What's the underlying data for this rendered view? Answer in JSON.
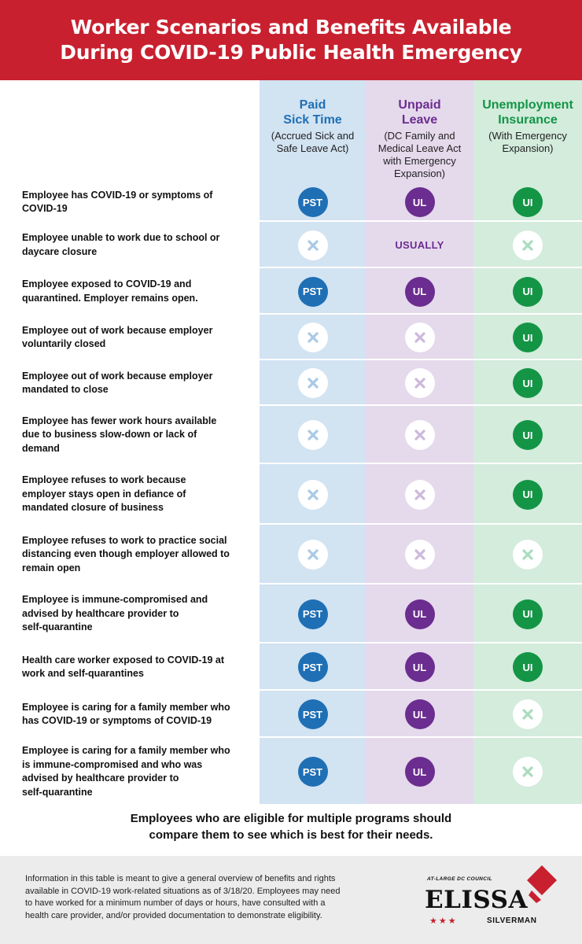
{
  "header": {
    "title_line1": "Worker Scenarios and Benefits Available",
    "title_line2": "During COVID-19 Public Health Emergency"
  },
  "columns": [
    {
      "title_line1": "Paid",
      "title_line2": "Sick Time",
      "sub_line1": "(Accrued Sick and",
      "sub_line2": "Safe Leave Act)",
      "sub_line3": "",
      "color": "#1f6fb5"
    },
    {
      "title_line1": "Unpaid",
      "title_line2": "Leave",
      "sub_line1": "(DC Family and",
      "sub_line2": "Medical Leave Act",
      "sub_line3": "with Emergency",
      "sub_line4": "Expansion)",
      "color": "#6b2d8f"
    },
    {
      "title_line1": "Unemployment",
      "title_line2": "Insurance",
      "sub_line1": "(With Emergency",
      "sub_line2": "Expansion)",
      "sub_line3": "",
      "color": "#139545"
    }
  ],
  "badges": {
    "pst": "PST",
    "ul": "UL",
    "ui": "UI",
    "usually": "USUALLY"
  },
  "rows": [
    {
      "lines": [
        "Employee has COVID-19 or symptoms of",
        "COVID-19"
      ],
      "cells": [
        "PST",
        "UL",
        "UI"
      ]
    },
    {
      "lines": [
        "Employee unable to work due to school or",
        "daycare closure"
      ],
      "cells": [
        "X",
        "USUALLY",
        "X"
      ]
    },
    {
      "lines": [
        "Employee exposed to COVID-19 and",
        "quarantined. Employer remains open."
      ],
      "cells": [
        "PST",
        "UL",
        "UI"
      ]
    },
    {
      "lines": [
        "Employee out of work because employer",
        "voluntarily closed"
      ],
      "cells": [
        "X",
        "X",
        "UI"
      ]
    },
    {
      "lines": [
        "Employee out of work because employer",
        "mandated to close"
      ],
      "cells": [
        "X",
        "X",
        "UI"
      ]
    },
    {
      "lines": [
        "Employee has fewer work hours available",
        "due to business slow-down or lack of",
        "demand"
      ],
      "cells": [
        "X",
        "X",
        "UI"
      ]
    },
    {
      "lines": [
        "Employee refuses to work because",
        "employer stays open in defiance of",
        "mandated closure of business"
      ],
      "cells": [
        "X",
        "X",
        "UI"
      ]
    },
    {
      "lines": [
        "Employee refuses to work to practice social",
        "distancing even though employer allowed to",
        "remain open"
      ],
      "cells": [
        "X",
        "X",
        "X"
      ]
    },
    {
      "lines": [
        "Employee is immune-compromised and",
        "advised by healthcare provider to",
        "self-quarantine"
      ],
      "cells": [
        "PST",
        "UL",
        "UI"
      ]
    },
    {
      "lines": [
        "Health care worker exposed to COVID-19 at",
        "work and self-quarantines"
      ],
      "cells": [
        "PST",
        "UL",
        "UI"
      ]
    },
    {
      "lines": [
        "Employee is caring for a family member who",
        "has COVID-19 or symptoms of COVID-19"
      ],
      "cells": [
        "PST",
        "UL",
        "X"
      ]
    },
    {
      "lines": [
        "Employee is caring for a family member who",
        "is immune-compromised and who was",
        "advised by healthcare provider to",
        "self-quarantine"
      ],
      "cells": [
        "PST",
        "UL",
        "X"
      ]
    }
  ],
  "note": {
    "line1": "Employees who are eligible for multiple programs should",
    "line2": "compare them to see which is best for their needs."
  },
  "footer": {
    "disclaimer_lines": [
      "Information in this table is meant to give a general overview of benefits and rights",
      "available in COVID-19 work-related situations as of 3/18/20. Employees may need",
      "to have worked for a minimum number of days or hours, have consulted with a",
      "health care provider, and/or provided documentation to demonstrate eligibility."
    ],
    "logo": {
      "kicker": "AT-LARGE DC COUNCIL",
      "name": "ELISSA",
      "stars": "★★★",
      "surname": "SILVERMAN"
    }
  },
  "colors": {
    "banner": "#c8202f",
    "pst": "#1f6fb5",
    "ul": "#6b2d8f",
    "ui": "#139545",
    "x_pst": "#a9c9e6",
    "x_ul": "#cdb9dc",
    "x_ui": "#a9dcbd"
  }
}
